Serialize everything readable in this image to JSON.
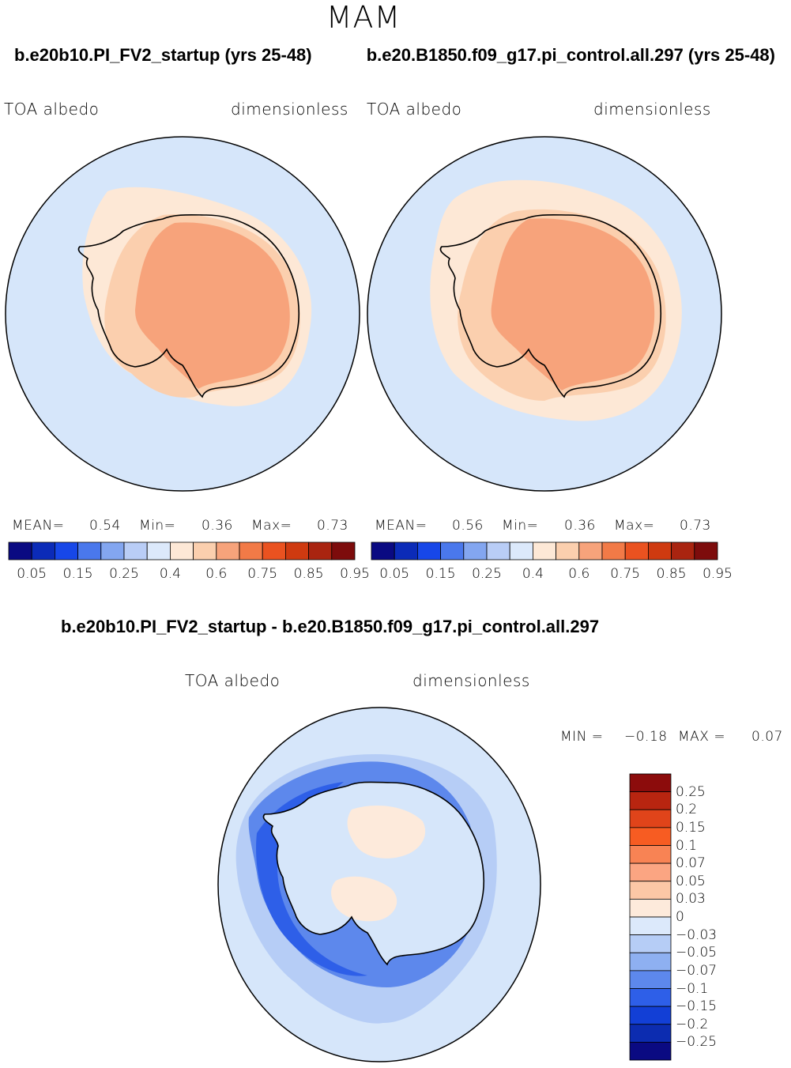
{
  "season": "MAM",
  "panels": [
    {
      "case_title": "b.e20b10.PI_FV2_startup (yrs 25-48)",
      "variable": "TOA  albedo",
      "units": "dimensionless",
      "mean_label": "MEAN=",
      "mean_value": "0.54",
      "min_label": "Min=",
      "min_value": "0.36",
      "max_label": "Max=",
      "max_value": "0.73"
    },
    {
      "case_title": "b.e20.B1850.f09_g17.pi_control.all.297 (yrs 25-48)",
      "variable": "TOA  albedo",
      "units": "dimensionless",
      "mean_label": "MEAN=",
      "mean_value": "0.56",
      "min_label": "Min=",
      "min_value": "0.36",
      "max_label": "Max=",
      "max_value": "0.73"
    }
  ],
  "diff": {
    "title": "b.e20b10.PI_FV2_startup - b.e20.B1850.f09_g17.pi_control.all.297",
    "variable": "TOA  albedo",
    "units": "dimensionless",
    "min_label": "MIN =",
    "min_value": "−0.18",
    "max_label": "MAX =",
    "max_value": "0.07"
  },
  "chart_data": [
    {
      "type": "heatmap",
      "projection": "south-polar-stereographic",
      "title": "b.e20b10.PI_FV2_startup (yrs 25-48)",
      "variable": "TOA albedo",
      "units": "dimensionless",
      "mean": 0.54,
      "min": 0.36,
      "max": 0.73,
      "colorbar_levels": [
        0.05,
        0.1,
        0.15,
        0.2,
        0.25,
        0.3,
        0.4,
        0.5,
        0.6,
        0.7,
        0.75,
        0.8,
        0.85,
        0.9,
        0.95
      ],
      "colorbar_tick_labels": [
        "0.05",
        "0.15",
        "0.25",
        "0.4",
        "0.6",
        "0.75",
        "0.85",
        "0.95"
      ],
      "colorbar_colors": [
        "#0a0a82",
        "#0b2bb8",
        "#1747e8",
        "#4a78ec",
        "#83a6f0",
        "#b9cdf6",
        "#dce9fb",
        "#fde8d6",
        "#fbcfae",
        "#f7a37b",
        "#f27a47",
        "#ea5220",
        "#cf3a10",
        "#a92410",
        "#7d0c0c"
      ]
    },
    {
      "type": "heatmap",
      "projection": "south-polar-stereographic",
      "title": "b.e20.B1850.f09_g17.pi_control.all.297 (yrs 25-48)",
      "variable": "TOA albedo",
      "units": "dimensionless",
      "mean": 0.56,
      "min": 0.36,
      "max": 0.73,
      "colorbar_levels": [
        0.05,
        0.1,
        0.15,
        0.2,
        0.25,
        0.3,
        0.4,
        0.5,
        0.6,
        0.7,
        0.75,
        0.8,
        0.85,
        0.9,
        0.95
      ],
      "colorbar_tick_labels": [
        "0.05",
        "0.15",
        "0.25",
        "0.4",
        "0.6",
        "0.75",
        "0.85",
        "0.95"
      ],
      "colorbar_colors": [
        "#0a0a82",
        "#0b2bb8",
        "#1747e8",
        "#4a78ec",
        "#83a6f0",
        "#b9cdf6",
        "#dce9fb",
        "#fde8d6",
        "#fbcfae",
        "#f7a37b",
        "#f27a47",
        "#ea5220",
        "#cf3a10",
        "#a92410",
        "#7d0c0c"
      ]
    },
    {
      "type": "heatmap",
      "projection": "south-polar-stereographic",
      "title": "b.e20b10.PI_FV2_startup - b.e20.B1850.f09_g17.pi_control.all.297",
      "variable": "TOA albedo",
      "units": "dimensionless",
      "min": -0.18,
      "max": 0.07,
      "colorbar_orientation": "vertical",
      "colorbar_tick_labels": [
        "0.25",
        "0.2",
        "0.15",
        "0.1",
        "0.07",
        "0.05",
        "0.03",
        "0",
        "−0.03",
        "−0.05",
        "−0.07",
        "−0.1",
        "−0.15",
        "−0.2",
        "−0.25"
      ],
      "colorbar_colors": [
        "#8c0c0c",
        "#b82510",
        "#e0441a",
        "#f75c22",
        "#f88354",
        "#fba582",
        "#fcc7a6",
        "#fdeadb",
        "#dce9fb",
        "#b6cdf6",
        "#8eb0f1",
        "#5d88ec",
        "#2e5fe8",
        "#123fd6",
        "#0c2cb0",
        "#0a0a82"
      ]
    }
  ],
  "colors": {
    "ocean_base": "#d6e6fa",
    "frame": "#000000"
  }
}
